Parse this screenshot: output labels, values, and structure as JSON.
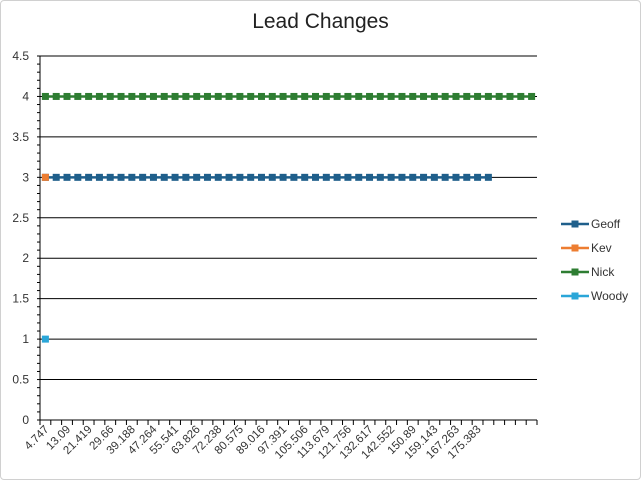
{
  "chart_data": {
    "type": "line",
    "title": "Lead Changes",
    "xlabel": "",
    "ylabel": "",
    "ylim": [
      0,
      4.5
    ],
    "ytick_step": 0.5,
    "grid": true,
    "legend_position": "right",
    "x_tick_labels": [
      "4.747",
      "13.09",
      "21.419",
      "29.66",
      "39.188",
      "47.264",
      "55.541",
      "63.826",
      "72.238",
      "80.575",
      "89.016",
      "97.391",
      "105.506",
      "113.679",
      "121.756",
      "132.617",
      "142.552",
      "150.89",
      "159.143",
      "167.263",
      "175.383"
    ],
    "num_categories": 46,
    "series": [
      {
        "name": "Geoff",
        "color": "#1f5f8b",
        "start": 0,
        "count": 42,
        "value": 3
      },
      {
        "name": "Kev",
        "color": "#ed7d31",
        "start": 0,
        "count": 1,
        "value": 3
      },
      {
        "name": "Nick",
        "color": "#2e7d32",
        "start": 0,
        "count": 46,
        "value": 4
      },
      {
        "name": "Woody",
        "color": "#2aa6d8",
        "start": 0,
        "count": 1,
        "value": 1
      }
    ]
  }
}
